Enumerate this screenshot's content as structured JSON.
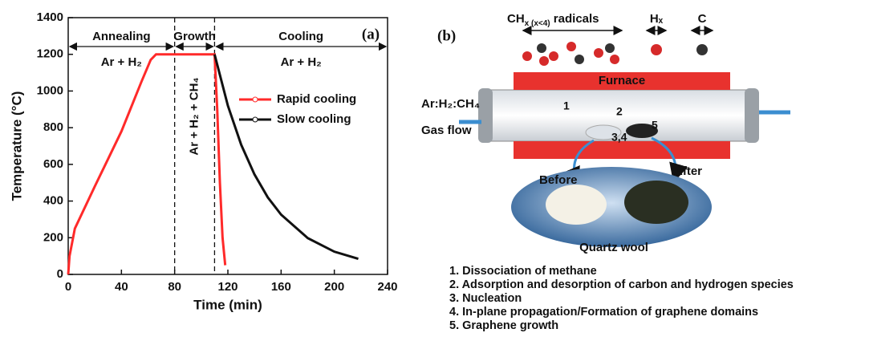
{
  "chart_data": {
    "type": "line",
    "panel_label": "(a)",
    "x_label": "Time (min)",
    "y_label": "Temperature (°C)",
    "xlim": [
      0,
      240
    ],
    "xticks": [
      0,
      40,
      80,
      120,
      160,
      200,
      240
    ],
    "ylim": [
      0,
      1400
    ],
    "yticks": [
      0,
      200,
      400,
      600,
      800,
      1000,
      1200,
      1400
    ],
    "series": [
      {
        "name": "Rapid cooling",
        "color": "#ff2a2a",
        "x": [
          0,
          1,
          5,
          20,
          40,
          55,
          62,
          66,
          80,
          100,
          110,
          112,
          114,
          116,
          118
        ],
        "values": [
          0,
          100,
          250,
          480,
          780,
          1050,
          1170,
          1200,
          1200,
          1200,
          1200,
          900,
          500,
          200,
          50
        ]
      },
      {
        "name": "Slow cooling",
        "color": "#111111",
        "x": [
          110,
          120,
          130,
          140,
          150,
          160,
          180,
          200,
          218
        ],
        "values": [
          1200,
          920,
          707,
          545,
          420,
          326,
          198,
          124,
          85
        ]
      }
    ],
    "vlines": [
      80,
      110
    ],
    "phases": [
      {
        "label": "Annealing",
        "gas": "Ar + H₂",
        "start": 0,
        "end": 80
      },
      {
        "label": "Growth",
        "gas": "Ar + H₂ + CH₄",
        "start": 80,
        "end": 110
      },
      {
        "label": "Cooling",
        "gas": "Ar + H₂",
        "start": 110,
        "end": 240
      }
    ]
  },
  "diagram": {
    "panel_label": "(b)",
    "radicals": {
      "base": "CH",
      "sub": "x (x<4)",
      "tail": " radicals"
    },
    "hydrogen": "Hₓ",
    "carbon": "C",
    "furnace": "Furnace",
    "gas_mix": "Ar:H₂:CH₄",
    "gas_flow": "Gas flow",
    "markers": [
      "1",
      "2",
      "3,4",
      "5"
    ],
    "before": "Before",
    "after": "After",
    "wool": "Quartz wool",
    "steps": [
      "1. Dissociation of methane",
      "2. Adsorption and desorption of carbon and hydrogen species",
      "3. Nucleation",
      "4. In-plane propagation/Formation of graphene domains",
      "5. Graphene growth"
    ]
  }
}
